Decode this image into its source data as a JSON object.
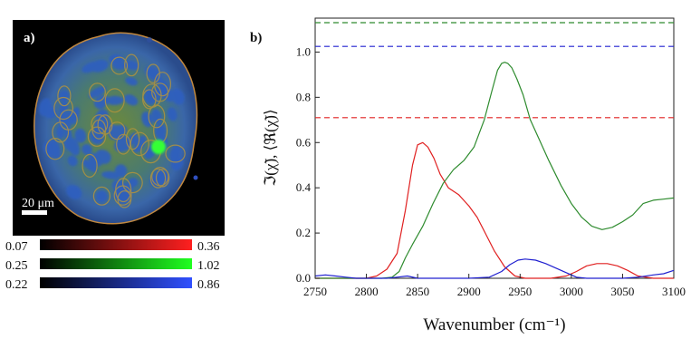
{
  "panel_a": {
    "label": "a)",
    "scale_bar_label": "20 μm",
    "colorbars": [
      {
        "min": "0.07",
        "max": "0.36",
        "color": "#ff2020"
      },
      {
        "min": "0.25",
        "max": "1.02",
        "color": "#20ff20"
      },
      {
        "min": "0.22",
        "max": "0.86",
        "color": "#3050ff"
      }
    ]
  },
  "panel_b": {
    "label": "b)"
  },
  "chart_data": {
    "type": "line",
    "xlabel": "Wavenumber (cm⁻¹)",
    "ylabel": "ℑ(χ̃), ⟨ℜ(χ̃)⟩",
    "xlim": [
      2750,
      3100
    ],
    "ylim": [
      0.0,
      1.15
    ],
    "xticks": [
      2750,
      2800,
      2850,
      2900,
      2950,
      3000,
      3050,
      3100
    ],
    "yticks": [
      0.0,
      0.2,
      0.4,
      0.6,
      0.8,
      1.0
    ],
    "series": [
      {
        "color": "#e02020",
        "x": [
          2750,
          2770,
          2790,
          2800,
          2810,
          2820,
          2830,
          2838,
          2845,
          2850,
          2855,
          2860,
          2866,
          2872,
          2880,
          2890,
          2900,
          2908,
          2916,
          2925,
          2935,
          2945,
          2955,
          2965,
          2980,
          2995,
          3005,
          3015,
          3025,
          3035,
          3045,
          3055,
          3065,
          3080,
          3100
        ],
        "y": [
          0.0,
          0.0,
          0.0,
          0.0,
          0.01,
          0.04,
          0.11,
          0.3,
          0.5,
          0.59,
          0.6,
          0.58,
          0.53,
          0.46,
          0.4,
          0.37,
          0.32,
          0.27,
          0.2,
          0.12,
          0.05,
          0.01,
          0.0,
          0.0,
          0.0,
          0.01,
          0.03,
          0.055,
          0.065,
          0.065,
          0.055,
          0.035,
          0.01,
          0.0,
          0.0
        ]
      },
      {
        "color": "#2e8b2e",
        "x": [
          2750,
          2780,
          2800,
          2815,
          2825,
          2832,
          2838,
          2845,
          2855,
          2865,
          2875,
          2885,
          2895,
          2905,
          2915,
          2922,
          2928,
          2932,
          2935,
          2938,
          2942,
          2947,
          2953,
          2960,
          2968,
          2978,
          2990,
          3000,
          3010,
          3020,
          3030,
          3040,
          3050,
          3060,
          3070,
          3080,
          3090,
          3100
        ],
        "y": [
          0.0,
          0.0,
          0.0,
          0.0,
          0.005,
          0.03,
          0.09,
          0.15,
          0.23,
          0.33,
          0.42,
          0.48,
          0.52,
          0.58,
          0.7,
          0.82,
          0.92,
          0.95,
          0.955,
          0.95,
          0.93,
          0.88,
          0.81,
          0.7,
          0.62,
          0.52,
          0.41,
          0.33,
          0.27,
          0.23,
          0.215,
          0.225,
          0.25,
          0.28,
          0.33,
          0.345,
          0.35,
          0.355
        ]
      },
      {
        "color": "#2020d0",
        "x": [
          2750,
          2760,
          2770,
          2780,
          2790,
          2800,
          2810,
          2820,
          2830,
          2840,
          2850,
          2870,
          2900,
          2920,
          2932,
          2940,
          2948,
          2955,
          2965,
          2975,
          2985,
          2995,
          3005,
          3015,
          3030,
          3050,
          3065,
          3080,
          3090,
          3100
        ],
        "y": [
          0.01,
          0.015,
          0.01,
          0.005,
          0.0,
          0.0,
          0.0,
          0.0,
          0.005,
          0.01,
          0.0,
          0.0,
          0.0,
          0.005,
          0.03,
          0.06,
          0.08,
          0.085,
          0.08,
          0.065,
          0.045,
          0.025,
          0.005,
          0.0,
          0.0,
          0.0,
          0.005,
          0.015,
          0.02,
          0.035
        ]
      }
    ],
    "reference_lines": [
      {
        "y": 1.13,
        "color": "#2e8b2e",
        "style": "dashed"
      },
      {
        "y": 1.025,
        "color": "#2020d0",
        "style": "dashed"
      },
      {
        "y": 0.71,
        "color": "#e02020",
        "style": "dashed"
      }
    ]
  }
}
